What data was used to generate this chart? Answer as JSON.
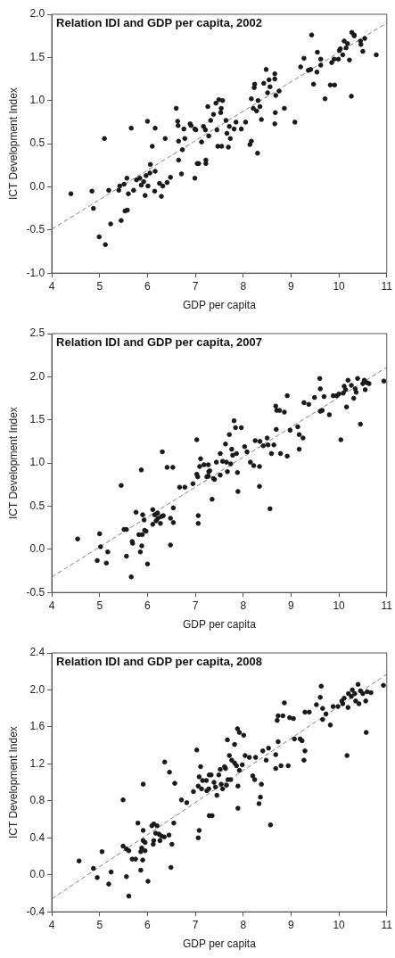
{
  "chart_data": [
    {
      "type": "scatter",
      "title": "Relation IDI and GDP per capita, 2002",
      "xlabel": "GDP per capita",
      "ylabel": "ICT Development Index",
      "xlim": [
        4,
        11
      ],
      "xticks": [
        4,
        5,
        6,
        7,
        8,
        9,
        10,
        11
      ],
      "ylim": [
        -1,
        2
      ],
      "yticks": [
        {
          "value": -1,
          "label": "-1.0"
        },
        {
          "value": -0.5,
          "label": "-0.5"
        },
        {
          "value": 0,
          "label": "0.0"
        },
        {
          "value": 0.5,
          "label": "0.5"
        },
        {
          "value": 1,
          "label": "1.0"
        },
        {
          "value": 1.5,
          "label": "1.5"
        },
        {
          "value": 2,
          "label": "2.0"
        }
      ],
      "grid": false,
      "legend": false,
      "series": [
        {
          "type": "scatter",
          "color": "#1a1a1a",
          "marker": "circle",
          "x": [
            4.4,
            4.84,
            4.87,
            5.1,
            4.99,
            5.12,
            5.19,
            5.23,
            5.4,
            5.45,
            5.42,
            5.51,
            5.53,
            5.58,
            5.57,
            5.6,
            5.66,
            5.71,
            5.77,
            5.84,
            5.87,
            5.92,
            5.95,
            5.97,
            6.0,
            6.01,
            6.05,
            6.06,
            6.1,
            6.15,
            6.16,
            6.16,
            6.25,
            6.29,
            6.32,
            6.37,
            6.41,
            6.48,
            6.6,
            6.63,
            6.64,
            6.65,
            6.65,
            6.71,
            6.73,
            6.76,
            6.78,
            6.89,
            6.91,
            6.99,
            6.99,
            7.04,
            7.01,
            7.07,
            7.22,
            7.22,
            7.13,
            7.17,
            7.21,
            7.28,
            7.32,
            7.38,
            7.26,
            7.43,
            7.49,
            7.57,
            7.54,
            7.53,
            7.45,
            7.47,
            7.55,
            7.64,
            7.66,
            7.69,
            7.71,
            7.73,
            7.81,
            7.85,
            7.96,
            8.05,
            8.14,
            8.17,
            8.3,
            8.17,
            8.21,
            8.23,
            8.24,
            8.28,
            8.31,
            8.35,
            8.38,
            8.43,
            8.48,
            8.51,
            8.54,
            8.56,
            8.66,
            8.66,
            8.67,
            8.66,
            8.68,
            8.75,
            8.86,
            9.08,
            9.2,
            9.27,
            9.36,
            9.41,
            9.47,
            9.55,
            9.54,
            9.62,
            9.62,
            9.71,
            9.82,
            9.91,
            9.85,
            9.9,
            9.99,
            10.01,
            10.03,
            10.08,
            10.11,
            10.15,
            10.18,
            10.22,
            10.26,
            10.27,
            10.32,
            10.32,
            10.45,
            10.46,
            10.5,
            10.54,
            10.78,
            9.43
          ],
          "values": [
            -0.08,
            -0.05,
            -0.25,
            0.56,
            -0.58,
            -0.67,
            -0.04,
            -0.43,
            -0.04,
            -0.39,
            0.01,
            0.03,
            -0.28,
            -0.27,
            0.1,
            -0.08,
            0.68,
            -0.04,
            0.08,
            0.1,
            0.02,
            0.06,
            -0.1,
            0.13,
            0.76,
            0.01,
            0.16,
            0.26,
            0.47,
            -0.05,
            0.68,
            0.18,
            0.04,
            -0.11,
            0.01,
            0.56,
            0.05,
            0.11,
            0.91,
            0.76,
            0.71,
            0.31,
            0.53,
            0.15,
            0.43,
            0.67,
            0.56,
            0.73,
            0.71,
            0.1,
            0.67,
            0.27,
            0.66,
            0.27,
            0.31,
            0.27,
            0.52,
            0.7,
            0.66,
            0.59,
            0.77,
            0.84,
            0.93,
            0.97,
            1.01,
            1.0,
            0.91,
            0.86,
            0.66,
            0.47,
            0.47,
            0.77,
            0.62,
            0.46,
            0.7,
            0.56,
            0.67,
            0.75,
            0.67,
            0.75,
            0.49,
            0.53,
            0.39,
            1.02,
            0.91,
            1.15,
            1.19,
            0.88,
            1.0,
            0.93,
            0.78,
            1.2,
            1.36,
            1.09,
            1.24,
            1.16,
            1.31,
            1.25,
            0.86,
            0.73,
            1.06,
            1.11,
            0.91,
            0.75,
            1.39,
            1.49,
            1.35,
            1.36,
            1.19,
            1.56,
            1.33,
            1.48,
            1.41,
            1.02,
            1.18,
            1.18,
            1.44,
            1.48,
            1.48,
            1.58,
            1.6,
            1.53,
            1.69,
            1.61,
            1.66,
            1.47,
            1.05,
            1.79,
            1.76,
            1.75,
            1.69,
            1.65,
            1.57,
            1.72,
            1.53,
            1.76
          ]
        },
        {
          "type": "line",
          "color": "#808080",
          "marker": "none",
          "line_style": "dashed",
          "x": [
            4,
            11
          ],
          "values": [
            -0.49,
            1.9
          ]
        }
      ]
    },
    {
      "type": "scatter",
      "title": "Relation IDI and GDP per capita, 2007",
      "xlabel": "GDP per capita",
      "ylabel": "ICT Development Index",
      "xlim": [
        4,
        11
      ],
      "xticks": [
        4,
        5,
        6,
        7,
        8,
        9,
        10,
        11
      ],
      "ylim": [
        -0.5,
        2.5
      ],
      "yticks": [
        {
          "value": -0.5,
          "label": "-0.5"
        },
        {
          "value": 0,
          "label": "0.0"
        },
        {
          "value": 0.5,
          "label": "0.5"
        },
        {
          "value": 1,
          "label": "1.0"
        },
        {
          "value": 1.5,
          "label": "1.5"
        },
        {
          "value": 2,
          "label": "2.0"
        },
        {
          "value": 2.5,
          "label": "2.5"
        }
      ],
      "grid": false,
      "legend": false,
      "series": [
        {
          "type": "scatter",
          "color": "#1a1a1a",
          "marker": "circle",
          "x": [
            4.54,
            5.0,
            5.02,
            4.95,
            5.17,
            5.14,
            5.45,
            5.51,
            5.56,
            5.56,
            5.66,
            5.68,
            5.69,
            5.76,
            5.82,
            5.85,
            5.87,
            5.89,
            5.9,
            5.88,
            5.93,
            5.94,
            5.97,
            6.0,
            6.11,
            6.11,
            6.15,
            6.18,
            6.21,
            6.22,
            6.27,
            6.29,
            6.31,
            6.33,
            6.41,
            6.48,
            6.48,
            6.53,
            6.54,
            6.54,
            6.67,
            6.78,
            6.95,
            7.03,
            7.03,
            7.05,
            7.06,
            7.06,
            7.11,
            7.09,
            7.18,
            7.27,
            7.24,
            7.28,
            7.35,
            7.38,
            7.3,
            7.27,
            7.4,
            7.44,
            7.52,
            7.52,
            7.57,
            7.63,
            7.65,
            7.67,
            7.71,
            7.74,
            7.76,
            7.78,
            7.81,
            7.84,
            7.86,
            7.88,
            7.89,
            7.96,
            8.03,
            8.08,
            8.15,
            8.22,
            8.25,
            8.34,
            8.34,
            8.35,
            8.42,
            8.5,
            8.52,
            8.56,
            8.59,
            8.64,
            8.68,
            8.69,
            8.7,
            8.76,
            8.78,
            8.86,
            8.92,
            8.92,
            8.98,
            9.14,
            9.17,
            9.17,
            9.25,
            9.27,
            9.37,
            9.49,
            9.6,
            9.61,
            9.61,
            9.65,
            9.69,
            9.8,
            9.88,
            9.95,
            10.0,
            10.04,
            10.09,
            10.11,
            10.14,
            10.16,
            10.19,
            10.26,
            10.31,
            10.34,
            10.36,
            10.39,
            10.45,
            10.5,
            10.53,
            10.55,
            10.59,
            10.63,
            10.94
          ],
          "values": [
            0.12,
            0.18,
            0.03,
            -0.13,
            -0.03,
            -0.16,
            0.74,
            0.23,
            0.23,
            -0.08,
            -0.32,
            0.09,
            0.07,
            0.43,
            0.17,
            -0.03,
            0.92,
            0.17,
            0.4,
            0.04,
            0.34,
            0.22,
            0.21,
            -0.17,
            0.46,
            0.29,
            0.4,
            0.33,
            0.42,
            0.36,
            0.3,
            0.38,
            1.13,
            0.39,
            0.95,
            0.36,
            0.05,
            0.95,
            0.48,
            0.31,
            0.72,
            0.72,
            0.76,
            1.27,
            0.87,
            0.84,
            0.39,
            0.3,
            1.05,
            0.96,
            0.98,
            0.98,
            0.84,
            0.9,
            0.58,
            0.82,
            0.91,
            0.85,
            0.81,
            1.01,
            1.11,
            0.86,
            1.02,
            1.22,
            1.01,
            0.9,
            1.33,
            0.99,
            1.16,
            1.09,
            1.49,
            1.41,
            1.11,
            0.89,
            0.67,
            1.41,
            1.19,
            1.13,
            1.01,
            0.97,
            1.26,
            0.96,
            0.73,
            1.25,
            1.2,
            1.29,
            1.21,
            0.47,
            1.11,
            1.21,
            1.66,
            1.39,
            1.61,
            1.61,
            1.11,
            1.59,
            1.08,
            1.78,
            1.38,
            1.42,
            1.33,
            1.16,
            1.29,
            1.7,
            1.68,
            1.76,
            1.98,
            1.86,
            1.6,
            1.61,
            1.77,
            1.56,
            1.78,
            1.78,
            1.8,
            1.27,
            1.81,
            1.89,
            1.85,
            1.65,
            1.96,
            1.9,
            1.75,
            1.86,
            1.82,
            1.98,
            1.45,
            1.92,
            1.96,
            1.85,
            1.93,
            1.92,
            1.95
          ]
        },
        {
          "type": "line",
          "color": "#808080",
          "marker": "none",
          "line_style": "dashed",
          "x": [
            4,
            11
          ],
          "values": [
            -0.32,
            2.11
          ]
        }
      ]
    },
    {
      "type": "scatter",
      "title": "Relation IDI and GDP per capita, 2008",
      "xlabel": "GDP per capita",
      "ylabel": "ICT Development Index",
      "xlim": [
        4,
        11
      ],
      "xticks": [
        4,
        5,
        6,
        7,
        8,
        9,
        10,
        11
      ],
      "ylim": [
        -0.4,
        2.4
      ],
      "yticks": [
        {
          "value": -0.4,
          "label": "-0.4"
        },
        {
          "value": 0,
          "label": "0.0"
        },
        {
          "value": 0.4,
          "label": "0.4"
        },
        {
          "value": 0.8,
          "label": "0.8"
        },
        {
          "value": 1.2,
          "label": "1.2"
        },
        {
          "value": 1.6,
          "label": "1.6"
        },
        {
          "value": 2,
          "label": "2.0"
        },
        {
          "value": 2.4,
          "label": "2.4"
        }
      ],
      "grid": false,
      "legend": false,
      "series": [
        {
          "type": "scatter",
          "color": "#1a1a1a",
          "marker": "circle",
          "x": [
            4.57,
            4.87,
            4.95,
            5.05,
            5.19,
            5.24,
            5.49,
            5.49,
            5.56,
            5.56,
            5.61,
            5.61,
            5.68,
            5.75,
            5.8,
            5.86,
            5.86,
            5.88,
            5.9,
            5.91,
            5.91,
            5.91,
            5.95,
            5.95,
            6.01,
            6.09,
            6.12,
            6.13,
            6.13,
            6.17,
            6.2,
            6.24,
            6.26,
            6.29,
            6.35,
            6.36,
            6.45,
            6.46,
            6.49,
            6.51,
            6.55,
            6.57,
            6.71,
            6.82,
            6.96,
            7.03,
            7.08,
            7.06,
            7.06,
            7.08,
            7.11,
            7.15,
            7.24,
            7.29,
            7.29,
            7.13,
            7.23,
            7.28,
            7.33,
            7.35,
            7.39,
            7.42,
            7.45,
            7.49,
            7.52,
            7.54,
            7.57,
            7.61,
            7.63,
            7.65,
            7.67,
            7.68,
            7.71,
            7.74,
            7.76,
            7.82,
            7.82,
            7.86,
            7.88,
            7.89,
            7.89,
            7.92,
            7.92,
            7.98,
            8.01,
            8.04,
            8.13,
            8.2,
            8.24,
            8.26,
            8.33,
            8.36,
            8.38,
            8.41,
            8.48,
            8.53,
            8.57,
            8.68,
            8.68,
            8.73,
            8.71,
            8.73,
            8.79,
            8.83,
            8.86,
            8.94,
            8.97,
            9.05,
            9.07,
            9.19,
            9.23,
            9.27,
            9.29,
            9.29,
            9.38,
            9.53,
            9.61,
            9.63,
            9.66,
            9.66,
            9.73,
            9.82,
            9.88,
            9.98,
            10.06,
            10.08,
            10.11,
            10.17,
            10.19,
            10.2,
            10.26,
            10.28,
            10.33,
            10.35,
            10.4,
            10.42,
            10.45,
            10.5,
            10.56,
            10.57,
            10.59,
            10.67,
            10.93
          ],
          "values": [
            0.15,
            0.07,
            -0.03,
            0.25,
            -0.1,
            0.03,
            0.81,
            0.31,
            0.28,
            -0.02,
            0.26,
            -0.23,
            0.17,
            0.17,
            0.56,
            0.05,
            0.25,
            0.29,
            0.16,
            0.98,
            0.48,
            0.37,
            0.35,
            0.26,
            -0.07,
            0.53,
            0.33,
            0.55,
            0.37,
            0.45,
            0.53,
            0.44,
            0.37,
            0.42,
            0.41,
            1.22,
            0.43,
            1.11,
            0.08,
            0.33,
            0.56,
            0.99,
            0.81,
            0.78,
            0.9,
            1.35,
            0.48,
            0.4,
            0.96,
            1.06,
            1.17,
            1.02,
            0.91,
            1.08,
            0.64,
            0.93,
            1.02,
            0.93,
            1.08,
            0.64,
            1.0,
            0.95,
            0.86,
            1.08,
            1.14,
            0.98,
            0.93,
            1.17,
            1.15,
            0.97,
            1.46,
            1.03,
            1.29,
            1.03,
            1.24,
            1.41,
            1.21,
            1.18,
            1.58,
            0.72,
            0.96,
            1.54,
            1.13,
            1.19,
            1.51,
            1.29,
            1.27,
            1.07,
            1.03,
            1.27,
            0.77,
            0.84,
            0.98,
            1.34,
            1.24,
            1.37,
            0.54,
            1.3,
            1.15,
            1.44,
            1.67,
            1.72,
            1.18,
            1.72,
            1.86,
            1.18,
            1.7,
            1.69,
            1.47,
            1.47,
            1.45,
            1.24,
            1.34,
            1.76,
            1.76,
            1.84,
            1.92,
            2.04,
            1.8,
            1.68,
            1.74,
            1.62,
            1.82,
            1.82,
            1.88,
            1.85,
            1.91,
            1.29,
            1.81,
            1.96,
            1.93,
            2.0,
            1.96,
            1.88,
            2.06,
            1.85,
            1.99,
            1.96,
            1.88,
            1.54,
            1.98,
            1.97,
            2.05
          ]
        },
        {
          "type": "line",
          "color": "#808080",
          "marker": "none",
          "line_style": "dashed",
          "x": [
            4,
            11
          ],
          "values": [
            -0.26,
            2.17
          ]
        }
      ]
    }
  ]
}
